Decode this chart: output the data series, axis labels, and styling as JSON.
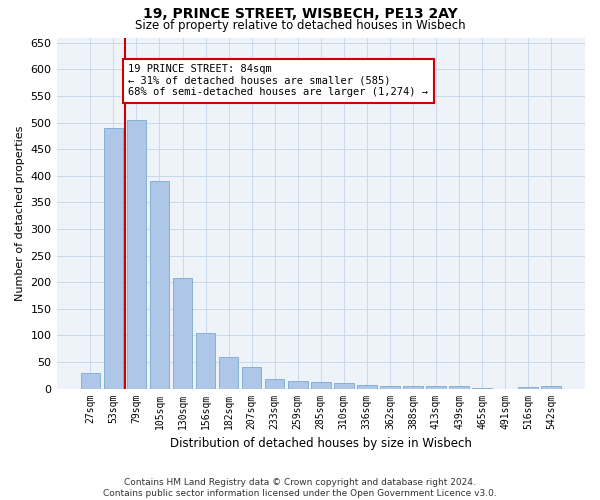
{
  "title1": "19, PRINCE STREET, WISBECH, PE13 2AY",
  "title2": "Size of property relative to detached houses in Wisbech",
  "xlabel": "Distribution of detached houses by size in Wisbech",
  "ylabel": "Number of detached properties",
  "footnote": "Contains HM Land Registry data © Crown copyright and database right 2024.\nContains public sector information licensed under the Open Government Licence v3.0.",
  "categories": [
    "27sqm",
    "53sqm",
    "79sqm",
    "105sqm",
    "130sqm",
    "156sqm",
    "182sqm",
    "207sqm",
    "233sqm",
    "259sqm",
    "285sqm",
    "310sqm",
    "336sqm",
    "362sqm",
    "388sqm",
    "413sqm",
    "439sqm",
    "465sqm",
    "491sqm",
    "516sqm",
    "542sqm"
  ],
  "values": [
    30,
    490,
    505,
    390,
    208,
    105,
    59,
    40,
    18,
    14,
    12,
    10,
    7,
    4,
    4,
    4,
    4,
    1,
    0,
    3,
    5
  ],
  "bar_color": "#aec6e8",
  "bar_edge_color": "#7aaad0",
  "subject_line_color": "#cc0000",
  "annotation_box_text": "19 PRINCE STREET: 84sqm\n← 31% of detached houses are smaller (585)\n68% of semi-detached houses are larger (1,274) →",
  "annotation_box_edge_color": "#cc0000",
  "ylim": [
    0,
    660
  ],
  "yticks": [
    0,
    50,
    100,
    150,
    200,
    250,
    300,
    350,
    400,
    450,
    500,
    550,
    600,
    650
  ],
  "grid_color": "#c8d8ea",
  "bg_color": "#eef3fa"
}
